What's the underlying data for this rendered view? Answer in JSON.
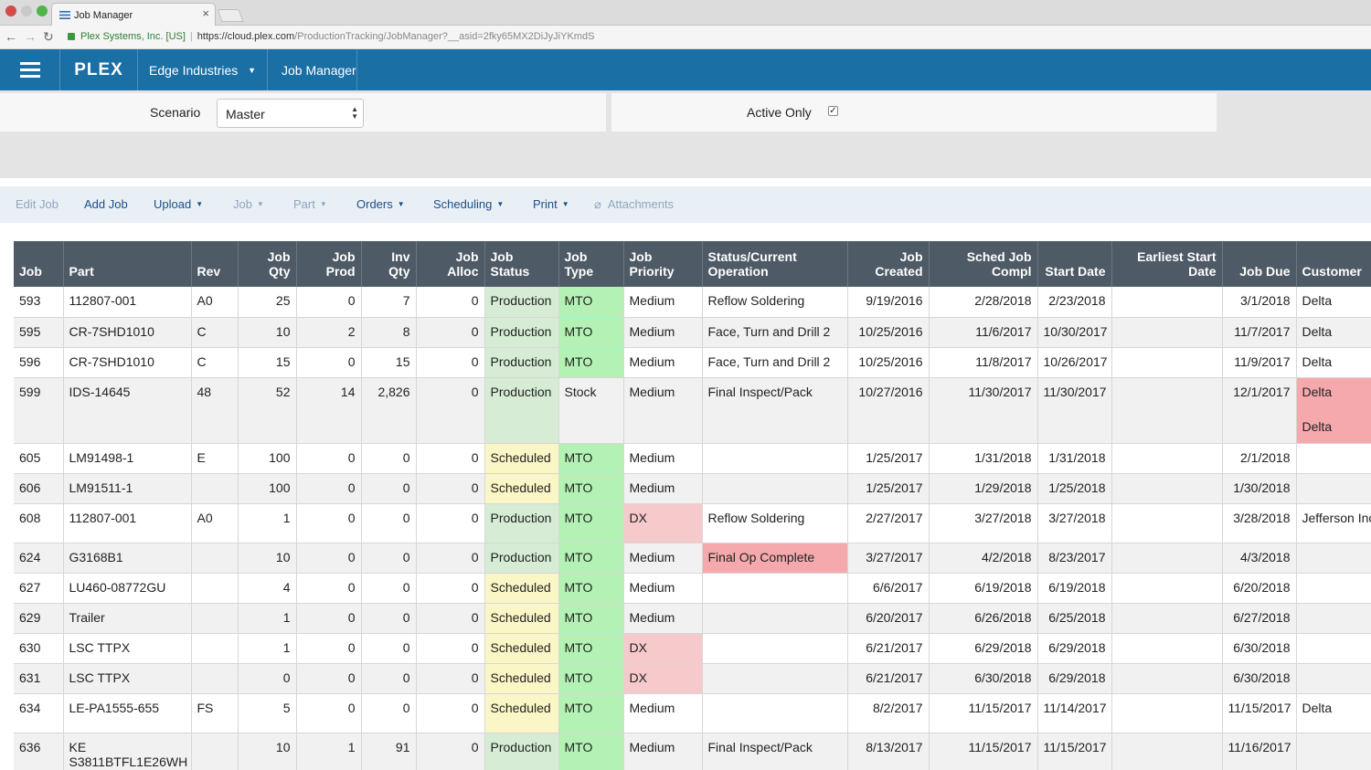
{
  "browser": {
    "tab_title": "Job Manager",
    "url_secure": "Plex Systems, Inc. [US]",
    "url_host": "https://cloud.plex.com",
    "url_path": "/ProductionTracking/JobManager?__asid=2fky65MX2DiJyJiYKmdS"
  },
  "header": {
    "logo": "PLEX",
    "company": "Edge Industries",
    "module": "Job Manager"
  },
  "filters": {
    "scenario_label": "Scenario",
    "scenario_value": "Master",
    "active_only_label": "Active Only",
    "active_only_checked": true
  },
  "toolbar": {
    "edit_job": "Edit Job",
    "add_job": "Add Job",
    "upload": "Upload",
    "job": "Job",
    "part": "Part",
    "orders": "Orders",
    "scheduling": "Scheduling",
    "print": "Print",
    "attachments": "Attachments"
  },
  "columns": [
    "Job",
    "Part",
    "Rev",
    "Job Qty",
    "Job Prod",
    "Inv Qty",
    "Job Alloc",
    "Job Status",
    "Job Type",
    "Job Priority",
    "Status/Current Operation",
    "Job Created",
    "Sched Job Compl",
    "Start Date",
    "Earliest Start Date",
    "Job Due",
    "Customer"
  ],
  "colors": {
    "header_bar": "#1a6fa5",
    "grid_header": "#4e5a65",
    "production": "#d6ecd5",
    "scheduled": "#fbf6c6",
    "mto": "#b3f2b4",
    "alert": "#f6c9cb"
  },
  "rows": [
    {
      "job": "593",
      "part": "112807-001",
      "rev": "A0",
      "qty": "25",
      "prod": "0",
      "inv": "7",
      "alloc": "0",
      "status": "Production",
      "type": "MTO",
      "priority": "Medium",
      "operation": "Reflow Soldering",
      "created": "9/19/2016",
      "sched": "2/28/2018",
      "start": "2/23/2018",
      "earliest": "",
      "due": "3/1/2018",
      "customer": "Delta"
    },
    {
      "job": "595",
      "part": "CR-7SHD1010",
      "rev": "C",
      "qty": "10",
      "prod": "2",
      "inv": "8",
      "alloc": "0",
      "status": "Production",
      "type": "MTO",
      "priority": "Medium",
      "operation": "Face, Turn and Drill 2",
      "created": "10/25/2016",
      "sched": "11/6/2017",
      "start": "10/30/2017",
      "earliest": "",
      "due": "11/7/2017",
      "customer": "Delta"
    },
    {
      "job": "596",
      "part": "CR-7SHD1010",
      "rev": "C",
      "qty": "15",
      "prod": "0",
      "inv": "15",
      "alloc": "0",
      "status": "Production",
      "type": "MTO",
      "priority": "Medium",
      "operation": "Face, Turn and Drill 2",
      "created": "10/25/2016",
      "sched": "11/8/2017",
      "start": "10/26/2017",
      "earliest": "",
      "due": "11/9/2017",
      "customer": "Delta"
    },
    {
      "job": "599",
      "part": "IDS-14645",
      "rev": "48",
      "qty": "52",
      "prod": "14",
      "inv": "2,826",
      "alloc": "0",
      "status": "Production",
      "type": "Stock",
      "priority": "Medium",
      "operation": "Final Inspect/Pack",
      "created": "10/27/2016",
      "sched": "11/30/2017",
      "start": "11/30/2017",
      "earliest": "",
      "due": "12/1/2017",
      "customer": "Delta",
      "customer2": "Delta"
    },
    {
      "job": "605",
      "part": "LM91498-1",
      "rev": "E",
      "qty": "100",
      "prod": "0",
      "inv": "0",
      "alloc": "0",
      "status": "Scheduled",
      "type": "MTO",
      "priority": "Medium",
      "operation": "",
      "created": "1/25/2017",
      "sched": "1/31/2018",
      "start": "1/31/2018",
      "earliest": "",
      "due": "2/1/2018",
      "customer": ""
    },
    {
      "job": "606",
      "part": "LM91511-1",
      "rev": "",
      "qty": "100",
      "prod": "0",
      "inv": "0",
      "alloc": "0",
      "status": "Scheduled",
      "type": "MTO",
      "priority": "Medium",
      "operation": "",
      "created": "1/25/2017",
      "sched": "1/29/2018",
      "start": "1/25/2018",
      "earliest": "",
      "due": "1/30/2018",
      "customer": ""
    },
    {
      "job": "608",
      "part": "112807-001",
      "rev": "A0",
      "qty": "1",
      "prod": "0",
      "inv": "0",
      "alloc": "0",
      "status": "Production",
      "type": "MTO",
      "priority": "DX",
      "operation": "Reflow Soldering",
      "created": "2/27/2017",
      "sched": "3/27/2018",
      "start": "3/27/2018",
      "earliest": "",
      "due": "3/28/2018",
      "customer": "Jefferson Inc"
    },
    {
      "job": "624",
      "part": "G3168B1",
      "rev": "",
      "qty": "10",
      "prod": "0",
      "inv": "0",
      "alloc": "0",
      "status": "Production",
      "type": "MTO",
      "priority": "Medium",
      "operation": "Final Op Complete",
      "created": "3/27/2017",
      "sched": "4/2/2018",
      "start": "8/23/2017",
      "earliest": "",
      "due": "4/3/2018",
      "customer": ""
    },
    {
      "job": "627",
      "part": "LU460-08772GU",
      "rev": "",
      "qty": "4",
      "prod": "0",
      "inv": "0",
      "alloc": "0",
      "status": "Scheduled",
      "type": "MTO",
      "priority": "Medium",
      "operation": "",
      "created": "6/6/2017",
      "sched": "6/19/2018",
      "start": "6/19/2018",
      "earliest": "",
      "due": "6/20/2018",
      "customer": ""
    },
    {
      "job": "629",
      "part": "Trailer",
      "rev": "",
      "qty": "1",
      "prod": "0",
      "inv": "0",
      "alloc": "0",
      "status": "Scheduled",
      "type": "MTO",
      "priority": "Medium",
      "operation": "",
      "created": "6/20/2017",
      "sched": "6/26/2018",
      "start": "6/25/2018",
      "earliest": "",
      "due": "6/27/2018",
      "customer": ""
    },
    {
      "job": "630",
      "part": "LSC TTPX",
      "rev": "",
      "qty": "1",
      "prod": "0",
      "inv": "0",
      "alloc": "0",
      "status": "Scheduled",
      "type": "MTO",
      "priority": "DX",
      "operation": "",
      "created": "6/21/2017",
      "sched": "6/29/2018",
      "start": "6/29/2018",
      "earliest": "",
      "due": "6/30/2018",
      "customer": ""
    },
    {
      "job": "631",
      "part": "LSC TTPX",
      "rev": "",
      "qty": "0",
      "prod": "0",
      "inv": "0",
      "alloc": "0",
      "status": "Scheduled",
      "type": "MTO",
      "priority": "DX",
      "operation": "",
      "created": "6/21/2017",
      "sched": "6/30/2018",
      "start": "6/29/2018",
      "earliest": "",
      "due": "6/30/2018",
      "customer": ""
    },
    {
      "job": "634",
      "part": "LE-PA1555-655",
      "rev": "FS",
      "qty": "5",
      "prod": "0",
      "inv": "0",
      "alloc": "0",
      "status": "Scheduled",
      "type": "MTO",
      "priority": "Medium",
      "operation": "",
      "created": "8/2/2017",
      "sched": "11/15/2017",
      "start": "11/14/2017",
      "earliest": "",
      "due": "11/15/2017",
      "customer": "Delta"
    },
    {
      "job": "636",
      "part": "KE S3811BTFL1E26WH",
      "rev": "",
      "qty": "10",
      "prod": "1",
      "inv": "91",
      "alloc": "0",
      "status": "Production",
      "type": "MTO",
      "priority": "Medium",
      "operation": "Final Inspect/Pack",
      "created": "8/13/2017",
      "sched": "11/15/2017",
      "start": "11/15/2017",
      "earliest": "",
      "due": "11/16/2017",
      "customer": ""
    }
  ]
}
